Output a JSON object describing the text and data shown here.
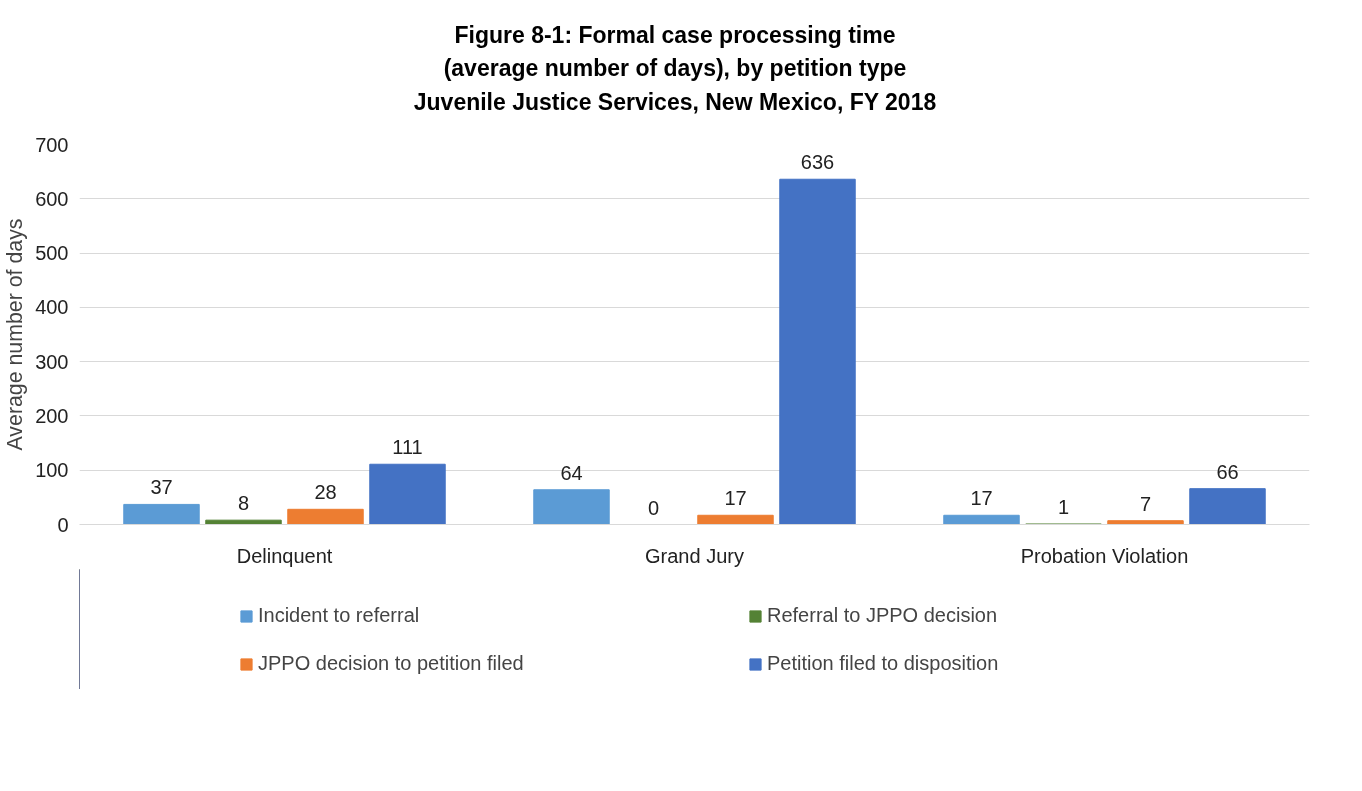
{
  "chart_data": {
    "type": "bar",
    "title": "Figure 8-1: Formal case processing time\n(average number of days), by petition type",
    "subtitle": "Juvenile Justice Services, New Mexico, FY 2018",
    "ylabel": "Average number of days",
    "categories": [
      "Delinquent",
      "Grand Jury",
      "Probation Violation"
    ],
    "series": [
      {
        "name": "Incident to referral",
        "color": "#5b9bd5",
        "values": [
          37,
          64,
          17
        ]
      },
      {
        "name": "Referral to JPPO decision",
        "color": "#548235",
        "values": [
          8,
          0,
          1
        ]
      },
      {
        "name": "JPPO decision to petition filed",
        "color": "#ed7d31",
        "values": [
          28,
          17,
          7
        ]
      },
      {
        "name": "Petition filed to disposition",
        "color": "#4472c4",
        "values": [
          111,
          636,
          66
        ]
      }
    ],
    "ylim": [
      0,
      700
    ],
    "yticks": [
      0,
      100,
      200,
      300,
      400,
      500,
      600,
      700
    ],
    "grid": "y",
    "legend": "bottom",
    "data_labels": true
  }
}
